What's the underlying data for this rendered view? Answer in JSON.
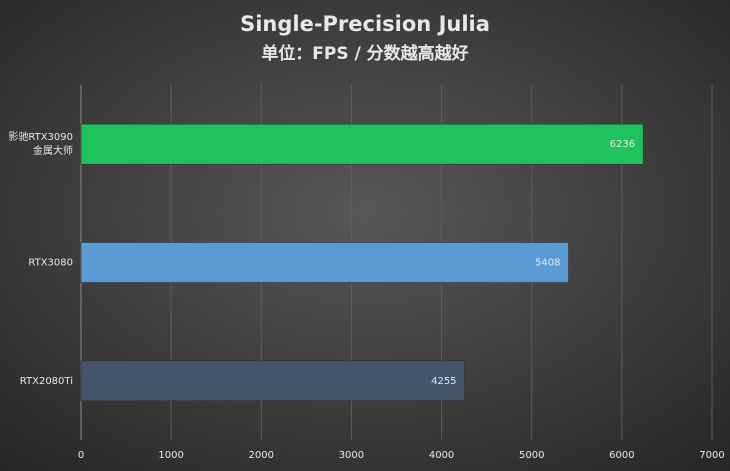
{
  "chart_data": {
    "type": "bar",
    "orientation": "horizontal",
    "title": "Single-Precision Julia",
    "subtitle": "单位：FPS / 分数越高越好",
    "categories": [
      "影驰RTX3090\n金属大师",
      "RTX3080",
      "RTX2080Ti"
    ],
    "values": [
      6236,
      5408,
      4255
    ],
    "colors": [
      "#1fc35b",
      "#5b9bd5",
      "#44546a"
    ],
    "xlim": [
      0,
      7000
    ],
    "xticks": [
      0,
      1000,
      2000,
      3000,
      4000,
      5000,
      6000,
      7000
    ],
    "grid": true
  }
}
